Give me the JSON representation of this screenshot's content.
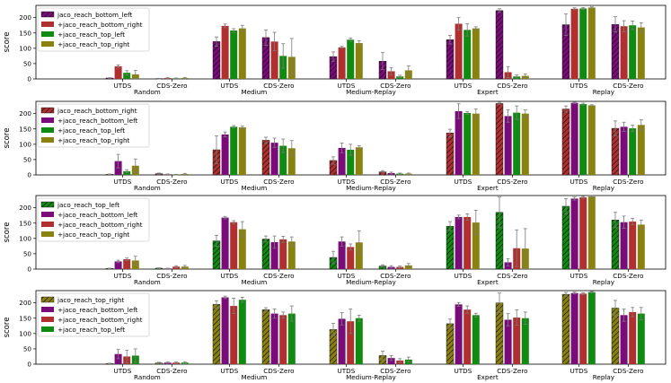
{
  "chart_data": {
    "type": "bar",
    "ylabel": "score",
    "ylim": [
      0,
      240
    ],
    "yticks": [
      0,
      50,
      100,
      150,
      200
    ],
    "datasets": [
      "Random",
      "Medium",
      "Medium-Replay",
      "Expert",
      "Replay"
    ],
    "methods": [
      "UTDS",
      "CDS-Zero"
    ],
    "colors": {
      "jaco_reach_bottom_left": "#7a0c7a",
      "jaco_reach_bottom_right": "#b03030",
      "jaco_reach_top_left": "#108a10",
      "jaco_reach_top_right": "#8a8210"
    },
    "panels": [
      {
        "target": "jaco_reach_bottom_left",
        "legend": [
          "jaco_reach_bottom_left",
          "+jaco_reach_bottom_right",
          "+jaco_reach_top_left",
          "+jaco_reach_top_right"
        ],
        "series": [
          "jaco_reach_bottom_left",
          "jaco_reach_bottom_right",
          "jaco_reach_top_left",
          "jaco_reach_top_right"
        ],
        "groups": [
          {
            "dataset": "Random",
            "method": "UTDS",
            "values": [
              3,
              41,
              20,
              15
            ],
            "errors": [
              1,
              5,
              7,
              13
            ]
          },
          {
            "dataset": "Random",
            "method": "CDS-Zero",
            "values": [
              1,
              3,
              2,
              3
            ],
            "errors": [
              1,
              2,
              1,
              2
            ]
          },
          {
            "dataset": "Medium",
            "method": "UTDS",
            "values": [
              122,
              173,
              158,
              165
            ],
            "errors": [
              15,
              6,
              6,
              10
            ]
          },
          {
            "dataset": "Medium",
            "method": "CDS-Zero",
            "values": [
              135,
              122,
              75,
              72
            ],
            "errors": [
              25,
              30,
              40,
              60
            ]
          },
          {
            "dataset": "Medium-Replay",
            "method": "UTDS",
            "values": [
              73,
              103,
              128,
              117
            ],
            "errors": [
              15,
              3,
              5,
              8
            ]
          },
          {
            "dataset": "Medium-Replay",
            "method": "CDS-Zero",
            "values": [
              58,
              25,
              8,
              28
            ],
            "errors": [
              28,
              12,
              4,
              15
            ]
          },
          {
            "dataset": "Expert",
            "method": "UTDS",
            "values": [
              128,
              180,
              160,
              165
            ],
            "errors": [
              14,
              20,
              20,
              5
            ]
          },
          {
            "dataset": "Expert",
            "method": "CDS-Zero",
            "values": [
              223,
              22,
              8,
              10
            ],
            "errors": [
              6,
              18,
              5,
              6
            ]
          },
          {
            "dataset": "Replay",
            "method": "UTDS",
            "values": [
              177,
              229,
              230,
              233
            ],
            "errors": [
              35,
              3,
              3,
              2
            ]
          },
          {
            "dataset": "Replay",
            "method": "CDS-Zero",
            "values": [
              178,
              172,
              175,
              168
            ],
            "errors": [
              25,
              18,
              14,
              15
            ]
          }
        ]
      },
      {
        "target": "jaco_reach_bottom_right",
        "legend": [
          "jaco_reach_bottom_right",
          "+jaco_reach_bottom_left",
          "+jaco_reach_top_left",
          "+jaco_reach_top_right"
        ],
        "series": [
          "jaco_reach_bottom_right",
          "jaco_reach_bottom_left",
          "jaco_reach_top_left",
          "jaco_reach_top_right"
        ],
        "groups": [
          {
            "dataset": "Random",
            "method": "UTDS",
            "values": [
              2,
              45,
              12,
              30
            ],
            "errors": [
              1,
              22,
              5,
              22
            ]
          },
          {
            "dataset": "Random",
            "method": "CDS-Zero",
            "values": [
              4,
              2,
              1,
              3
            ],
            "errors": [
              2,
              1,
              1,
              2
            ]
          },
          {
            "dataset": "Medium",
            "method": "UTDS",
            "values": [
              82,
              132,
              157,
              155
            ],
            "errors": [
              45,
              8,
              4,
              4
            ]
          },
          {
            "dataset": "Medium",
            "method": "CDS-Zero",
            "values": [
              113,
              105,
              95,
              87
            ],
            "errors": [
              10,
              15,
              22,
              25
            ]
          },
          {
            "dataset": "Medium-Replay",
            "method": "UTDS",
            "values": [
              47,
              88,
              82,
              90
            ],
            "errors": [
              12,
              16,
              18,
              5
            ]
          },
          {
            "dataset": "Medium-Replay",
            "method": "CDS-Zero",
            "values": [
              10,
              6,
              4,
              4
            ],
            "errors": [
              4,
              3,
              2,
              2
            ]
          },
          {
            "dataset": "Expert",
            "method": "UTDS",
            "values": [
              137,
              208,
              202,
              200
            ],
            "errors": [
              12,
              24,
              4,
              15
            ]
          },
          {
            "dataset": "Expert",
            "method": "CDS-Zero",
            "values": [
              233,
              192,
              203,
              200
            ],
            "errors": [
              4,
              20,
              22,
              12
            ]
          },
          {
            "dataset": "Replay",
            "method": "UTDS",
            "values": [
              215,
              235,
              231,
              227
            ],
            "errors": [
              10,
              2,
              3,
              2
            ]
          },
          {
            "dataset": "Replay",
            "method": "CDS-Zero",
            "values": [
              152,
              157,
              152,
              163
            ],
            "errors": [
              24,
              15,
              10,
              17
            ]
          }
        ]
      },
      {
        "target": "jaco_reach_top_left",
        "legend": [
          "jaco_reach_top_left",
          "+jaco_reach_bottom_left",
          "+jaco_reach_bottom_right",
          "+jaco_reach_top_right"
        ],
        "series": [
          "jaco_reach_top_left",
          "jaco_reach_bottom_left",
          "jaco_reach_bottom_right",
          "jaco_reach_top_right"
        ],
        "groups": [
          {
            "dataset": "Random",
            "method": "UTDS",
            "values": [
              2,
              25,
              32,
              28
            ],
            "errors": [
              1,
              4,
              4,
              14
            ]
          },
          {
            "dataset": "Random",
            "method": "CDS-Zero",
            "values": [
              3,
              2,
              8,
              8
            ],
            "errors": [
              1,
              1,
              3,
              4
            ]
          },
          {
            "dataset": "Medium",
            "method": "UTDS",
            "values": [
              92,
              168,
              153,
              130
            ],
            "errors": [
              18,
              4,
              5,
              25
            ]
          },
          {
            "dataset": "Medium",
            "method": "CDS-Zero",
            "values": [
              98,
              88,
              97,
              90
            ],
            "errors": [
              10,
              20,
              10,
              15
            ]
          },
          {
            "dataset": "Medium-Replay",
            "method": "UTDS",
            "values": [
              38,
              90,
              72,
              87
            ],
            "errors": [
              20,
              15,
              10,
              38
            ]
          },
          {
            "dataset": "Medium-Replay",
            "method": "CDS-Zero",
            "values": [
              10,
              7,
              7,
              12
            ],
            "errors": [
              4,
              4,
              3,
              6
            ]
          },
          {
            "dataset": "Expert",
            "method": "UTDS",
            "values": [
              140,
              170,
              170,
              152
            ],
            "errors": [
              15,
              6,
              10,
              40
            ]
          },
          {
            "dataset": "Expert",
            "method": "CDS-Zero",
            "values": [
              185,
              22,
              68,
              67
            ],
            "errors": [
              50,
              12,
              60,
              65
            ]
          },
          {
            "dataset": "Replay",
            "method": "UTDS",
            "values": [
              205,
              230,
              234,
              237
            ],
            "errors": [
              25,
              5,
              3,
              2
            ]
          },
          {
            "dataset": "Replay",
            "method": "CDS-Zero",
            "values": [
              160,
              153,
              155,
              145
            ],
            "errors": [
              25,
              20,
              10,
              15
            ]
          }
        ]
      },
      {
        "target": "jaco_reach_top_right",
        "legend": [
          "jaco_reach_top_right",
          "+jaco_reach_bottom_left",
          "+jaco_reach_bottom_right",
          "+jaco_reach_top_left"
        ],
        "series": [
          "jaco_reach_top_right",
          "jaco_reach_bottom_left",
          "jaco_reach_bottom_right",
          "jaco_reach_top_left"
        ],
        "groups": [
          {
            "dataset": "Random",
            "method": "UTDS",
            "values": [
              2,
              33,
              25,
              28
            ],
            "errors": [
              1,
              15,
              20,
              22
            ]
          },
          {
            "dataset": "Random",
            "method": "CDS-Zero",
            "values": [
              4,
              5,
              5,
              5
            ],
            "errors": [
              2,
              2,
              2,
              3
            ]
          },
          {
            "dataset": "Medium",
            "method": "UTDS",
            "values": [
              195,
              218,
              190,
              210
            ],
            "errors": [
              12,
              4,
              25,
              8
            ]
          },
          {
            "dataset": "Medium",
            "method": "CDS-Zero",
            "values": [
              178,
              165,
              160,
              165
            ],
            "errors": [
              6,
              15,
              10,
              25
            ]
          },
          {
            "dataset": "Medium-Replay",
            "method": "UTDS",
            "values": [
              113,
              148,
              140,
              150
            ],
            "errors": [
              20,
              20,
              40,
              10
            ]
          },
          {
            "dataset": "Medium-Replay",
            "method": "CDS-Zero",
            "values": [
              28,
              20,
              12,
              15
            ],
            "errors": [
              15,
              8,
              6,
              8
            ]
          },
          {
            "dataset": "Expert",
            "method": "UTDS",
            "values": [
              132,
              195,
              178,
              160
            ],
            "errors": [
              15,
              6,
              12,
              6
            ]
          },
          {
            "dataset": "Expert",
            "method": "CDS-Zero",
            "values": [
              200,
              145,
              152,
              150
            ],
            "errors": [
              32,
              20,
              25,
              20
            ]
          },
          {
            "dataset": "Replay",
            "method": "UTDS",
            "values": [
              228,
              232,
              230,
              235
            ],
            "errors": [
              6,
              3,
              3,
              2
            ]
          },
          {
            "dataset": "Replay",
            "method": "CDS-Zero",
            "values": [
              183,
              160,
              170,
              165
            ],
            "errors": [
              25,
              20,
              15,
              20
            ]
          }
        ]
      }
    ]
  }
}
